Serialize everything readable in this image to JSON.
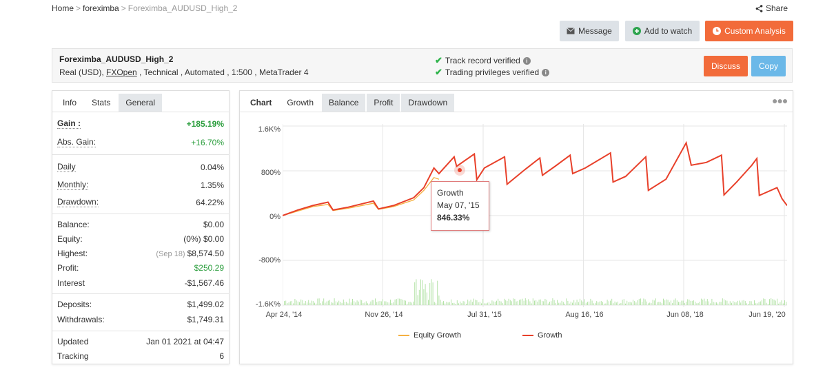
{
  "breadcrumb": {
    "home": "Home",
    "parent": "foreximba",
    "current": "Foreximba_AUDUSD_High_2"
  },
  "share_label": "Share",
  "actions": {
    "message": "Message",
    "add_to_watch": "Add to watch",
    "custom_analysis": "Custom Analysis",
    "discuss": "Discuss",
    "copy": "Copy"
  },
  "system": {
    "name": "Foreximba_AUDUSD_High_2",
    "desc_prefix": "Real (USD), ",
    "broker": "FXOpen",
    "desc_suffix": " , Technical , Automated , 1:500 , MetaTrader 4",
    "track_record": "Track record verified",
    "trading_privileges": "Trading privileges verified"
  },
  "left_tabs": [
    "Info",
    "Stats",
    "General"
  ],
  "stats": {
    "gain_label": "Gain :",
    "gain": "+185.19%",
    "abs_gain_label": "Abs. Gain:",
    "abs_gain": "+16.70%",
    "daily_label": "Daily",
    "daily": "0.04%",
    "monthly_label": "Monthly:",
    "monthly": "1.35%",
    "drawdown_label": "Drawdown:",
    "drawdown": "64.22%",
    "balance_label": "Balance:",
    "balance": "$0.00",
    "equity_label": "Equity:",
    "equity": "(0%) $0.00",
    "highest_label": "Highest:",
    "highest_date": "(Sep 18)",
    "highest": "$8,574.50",
    "profit_label": "Profit:",
    "profit": "$250.29",
    "interest_label": "Interest",
    "interest": "-$1,567.46",
    "deposits_label": "Deposits:",
    "deposits": "$1,499.02",
    "withdrawals_label": "Withdrawals:",
    "withdrawals": "$1,749.31",
    "updated_label": "Updated",
    "updated": "Jan 01 2021 at 04:47",
    "tracking_label": "Tracking",
    "tracking": "6"
  },
  "chart_tabs": [
    "Chart",
    "Growth",
    "Balance",
    "Profit",
    "Drawdown"
  ],
  "tooltip": {
    "title": "Growth",
    "date": "May 07, '15",
    "value": "846.33%"
  },
  "colors": {
    "growth": "#e8402a",
    "equity": "#f5b041",
    "volume": "#b5e3a8",
    "accent": "#f26b3a"
  },
  "chart_data": {
    "type": "line",
    "y_ticks": [
      "1.6K%",
      "800%",
      "0%",
      "-800%",
      "-1.6K%"
    ],
    "ylim": [
      -1600,
      1600
    ],
    "x_ticks": [
      "Apr 24, '14",
      "Nov 26, '14",
      "Jul 31, '15",
      "Aug 16, '16",
      "Jun 08, '18",
      "Jun 19, '20"
    ],
    "legend": [
      "Equity Growth",
      "Growth"
    ],
    "series": [
      {
        "name": "Growth",
        "points": [
          [
            0,
            0
          ],
          [
            0.03,
            100
          ],
          [
            0.06,
            180
          ],
          [
            0.09,
            240
          ],
          [
            0.1,
            100
          ],
          [
            0.13,
            150
          ],
          [
            0.18,
            260
          ],
          [
            0.19,
            120
          ],
          [
            0.22,
            180
          ],
          [
            0.26,
            320
          ],
          [
            0.28,
            500
          ],
          [
            0.3,
            850
          ],
          [
            0.31,
            750
          ],
          [
            0.34,
            1050
          ],
          [
            0.345,
            880
          ],
          [
            0.38,
            1100
          ],
          [
            0.385,
            640
          ],
          [
            0.4,
            850
          ],
          [
            0.44,
            1050
          ],
          [
            0.445,
            560
          ],
          [
            0.48,
            820
          ],
          [
            0.51,
            1030
          ],
          [
            0.515,
            720
          ],
          [
            0.54,
            880
          ],
          [
            0.57,
            1080
          ],
          [
            0.575,
            750
          ],
          [
            0.6,
            850
          ],
          [
            0.65,
            1120
          ],
          [
            0.655,
            600
          ],
          [
            0.68,
            700
          ],
          [
            0.72,
            1050
          ],
          [
            0.725,
            450
          ],
          [
            0.76,
            650
          ],
          [
            0.8,
            1300
          ],
          [
            0.81,
            900
          ],
          [
            0.84,
            950
          ],
          [
            0.87,
            1080
          ],
          [
            0.875,
            370
          ],
          [
            0.9,
            600
          ],
          [
            0.93,
            900
          ],
          [
            0.94,
            1020
          ],
          [
            0.945,
            360
          ],
          [
            0.98,
            500
          ],
          [
            0.99,
            300
          ],
          [
            1.0,
            180
          ]
        ]
      },
      {
        "name": "Equity Growth",
        "points": [
          [
            0,
            0
          ],
          [
            0.03,
            80
          ],
          [
            0.06,
            160
          ],
          [
            0.09,
            200
          ],
          [
            0.1,
            90
          ],
          [
            0.13,
            130
          ],
          [
            0.18,
            220
          ],
          [
            0.19,
            110
          ],
          [
            0.22,
            160
          ],
          [
            0.26,
            280
          ],
          [
            0.28,
            450
          ],
          [
            0.3,
            680
          ],
          [
            0.31,
            650
          ]
        ]
      }
    ]
  }
}
